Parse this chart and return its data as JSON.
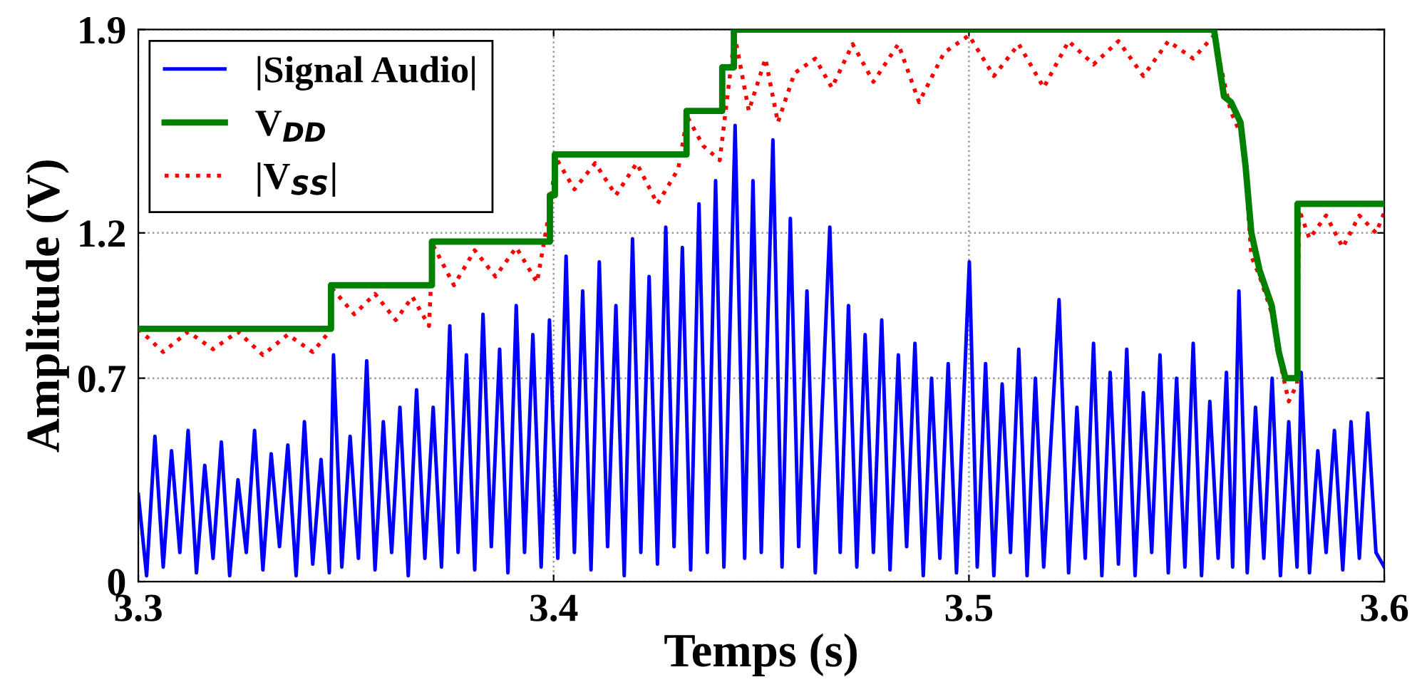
{
  "chart_data": {
    "type": "line",
    "xlabel": "Temps (s)",
    "ylabel": "Amplitude (V)",
    "xlim": [
      3.3,
      3.6
    ],
    "xticks": [
      3.3,
      3.4,
      3.5,
      3.6
    ],
    "ylim": [
      0,
      1.9
    ],
    "yticks": [
      0,
      0.7,
      1.2,
      1.9
    ],
    "grid": true,
    "legend": "top left",
    "series": [
      {
        "name": "|Signal Audio|",
        "color": "#0000ff",
        "line_style": "solid",
        "x": [
          3.3,
          3.302,
          3.304,
          3.306,
          3.308,
          3.31,
          3.312,
          3.314,
          3.316,
          3.318,
          3.32,
          3.322,
          3.324,
          3.326,
          3.328,
          3.33,
          3.332,
          3.334,
          3.336,
          3.338,
          3.34,
          3.342,
          3.344,
          3.346,
          3.347,
          3.349,
          3.351,
          3.353,
          3.355,
          3.357,
          3.359,
          3.361,
          3.363,
          3.365,
          3.367,
          3.369,
          3.371,
          3.373,
          3.375,
          3.377,
          3.379,
          3.381,
          3.383,
          3.385,
          3.387,
          3.389,
          3.391,
          3.393,
          3.395,
          3.397,
          3.399,
          3.401,
          3.403,
          3.405,
          3.407,
          3.409,
          3.411,
          3.413,
          3.415,
          3.417,
          3.419,
          3.421,
          3.423,
          3.425,
          3.427,
          3.429,
          3.431,
          3.433,
          3.435,
          3.437,
          3.439,
          3.441,
          3.4437,
          3.446,
          3.448,
          3.45,
          3.4528,
          3.455,
          3.457,
          3.459,
          3.461,
          3.463,
          3.4665,
          3.469,
          3.471,
          3.473,
          3.475,
          3.477,
          3.479,
          3.481,
          3.483,
          3.485,
          3.487,
          3.489,
          3.491,
          3.493,
          3.495,
          3.497,
          3.5001,
          3.502,
          3.504,
          3.506,
          3.508,
          3.51,
          3.512,
          3.514,
          3.516,
          3.518,
          3.5217,
          3.524,
          3.526,
          3.528,
          3.53,
          3.532,
          3.534,
          3.536,
          3.538,
          3.54,
          3.542,
          3.544,
          3.546,
          3.548,
          3.55,
          3.552,
          3.554,
          3.556,
          3.558,
          3.56,
          3.562,
          3.5635,
          3.565,
          3.567,
          3.569,
          3.571,
          3.573,
          3.575,
          3.577,
          3.579,
          3.58,
          3.582,
          3.584,
          3.586,
          3.588,
          3.59,
          3.592,
          3.594,
          3.596,
          3.598,
          3.6
        ],
        "values": [
          0.3,
          0.02,
          0.5,
          0.05,
          0.45,
          0.1,
          0.52,
          0.03,
          0.4,
          0.08,
          0.48,
          0.02,
          0.35,
          0.1,
          0.52,
          0.04,
          0.44,
          0.12,
          0.47,
          0.02,
          0.55,
          0.06,
          0.42,
          0.03,
          0.78,
          0.05,
          0.5,
          0.08,
          0.76,
          0.04,
          0.55,
          0.1,
          0.6,
          0.02,
          0.66,
          0.08,
          0.6,
          0.05,
          0.88,
          0.1,
          0.78,
          0.04,
          0.92,
          0.12,
          0.8,
          0.03,
          0.95,
          0.1,
          0.85,
          0.05,
          0.9,
          0.08,
          1.12,
          0.1,
          1.0,
          0.04,
          1.1,
          0.12,
          0.95,
          0.02,
          1.18,
          0.1,
          1.05,
          0.06,
          1.22,
          0.12,
          1.15,
          0.04,
          1.3,
          0.1,
          1.38,
          0.05,
          1.57,
          0.08,
          1.38,
          0.1,
          1.52,
          0.05,
          1.25,
          0.12,
          1.0,
          0.03,
          1.22,
          0.1,
          0.95,
          0.05,
          0.85,
          0.1,
          0.9,
          0.04,
          0.78,
          0.12,
          0.82,
          0.02,
          0.7,
          0.08,
          0.75,
          0.03,
          1.1,
          0.05,
          0.75,
          0.02,
          0.68,
          0.1,
          0.8,
          0.02,
          0.7,
          0.05,
          0.97,
          0.03,
          0.6,
          0.08,
          0.82,
          0.02,
          0.72,
          0.06,
          0.8,
          0.02,
          0.65,
          0.1,
          0.78,
          0.03,
          0.7,
          0.05,
          0.82,
          0.02,
          0.62,
          0.08,
          0.72,
          0.05,
          1.0,
          0.03,
          0.6,
          0.08,
          0.7,
          0.02,
          0.55,
          0.05,
          0.72,
          0.03,
          0.45,
          0.1,
          0.52,
          0.04,
          0.55,
          0.08,
          0.58,
          0.1,
          0.05
        ]
      },
      {
        "name": "V$_{DD}$",
        "color": "#008000",
        "line_style": "solid",
        "x": [
          3.3,
          3.3464,
          3.3464,
          3.3707,
          3.3707,
          3.3991,
          3.3991,
          3.4003,
          3.4003,
          3.432,
          3.432,
          3.4406,
          3.4406,
          3.4434,
          3.4434,
          3.559,
          3.5614,
          3.5631,
          3.5654,
          3.5666,
          3.568,
          3.57,
          3.5729,
          3.5746,
          3.5762,
          3.5791,
          3.5791,
          3.6
        ],
        "values": [
          0.87,
          0.87,
          1.02,
          1.02,
          1.17,
          1.17,
          1.33,
          1.33,
          1.47,
          1.47,
          1.62,
          1.62,
          1.77,
          1.77,
          1.9,
          1.9,
          1.67,
          1.65,
          1.58,
          1.43,
          1.2,
          1.07,
          0.95,
          0.79,
          0.7,
          0.7,
          1.3,
          1.3
        ]
      },
      {
        "name": "|V$_{SS}$|",
        "color": "#ff0000",
        "line_style": "dotted",
        "x": [
          3.3,
          3.306,
          3.312,
          3.318,
          3.324,
          3.33,
          3.336,
          3.342,
          3.346,
          3.3466,
          3.352,
          3.357,
          3.362,
          3.366,
          3.37,
          3.3709,
          3.376,
          3.381,
          3.386,
          3.391,
          3.396,
          3.3993,
          3.4005,
          3.405,
          3.41,
          3.415,
          3.42,
          3.425,
          3.43,
          3.4322,
          3.436,
          3.44,
          3.4436,
          3.447,
          3.451,
          3.454,
          3.458,
          3.463,
          3.467,
          3.472,
          3.477,
          3.483,
          3.488,
          3.494,
          3.5,
          3.506,
          3.512,
          3.518,
          3.524,
          3.53,
          3.536,
          3.542,
          3.548,
          3.554,
          3.559,
          3.563,
          3.566,
          3.568,
          3.57,
          3.573,
          3.575,
          3.577,
          3.579,
          3.5795,
          3.582,
          3.586,
          3.59,
          3.594,
          3.598,
          3.6
        ],
        "values": [
          0.87,
          0.79,
          0.86,
          0.8,
          0.86,
          0.78,
          0.85,
          0.79,
          0.86,
          1.01,
          0.92,
          0.99,
          0.9,
          0.98,
          0.88,
          1.16,
          1.02,
          1.14,
          1.05,
          1.15,
          1.03,
          1.3,
          1.46,
          1.35,
          1.44,
          1.33,
          1.44,
          1.3,
          1.42,
          1.6,
          1.5,
          1.45,
          1.88,
          1.62,
          1.8,
          1.58,
          1.75,
          1.8,
          1.7,
          1.85,
          1.72,
          1.85,
          1.65,
          1.82,
          1.88,
          1.74,
          1.85,
          1.7,
          1.86,
          1.78,
          1.86,
          1.74,
          1.86,
          1.8,
          1.88,
          1.62,
          1.52,
          1.12,
          1.05,
          0.92,
          0.75,
          0.62,
          0.68,
          1.28,
          1.18,
          1.26,
          1.15,
          1.26,
          1.2,
          1.27
        ]
      }
    ]
  }
}
